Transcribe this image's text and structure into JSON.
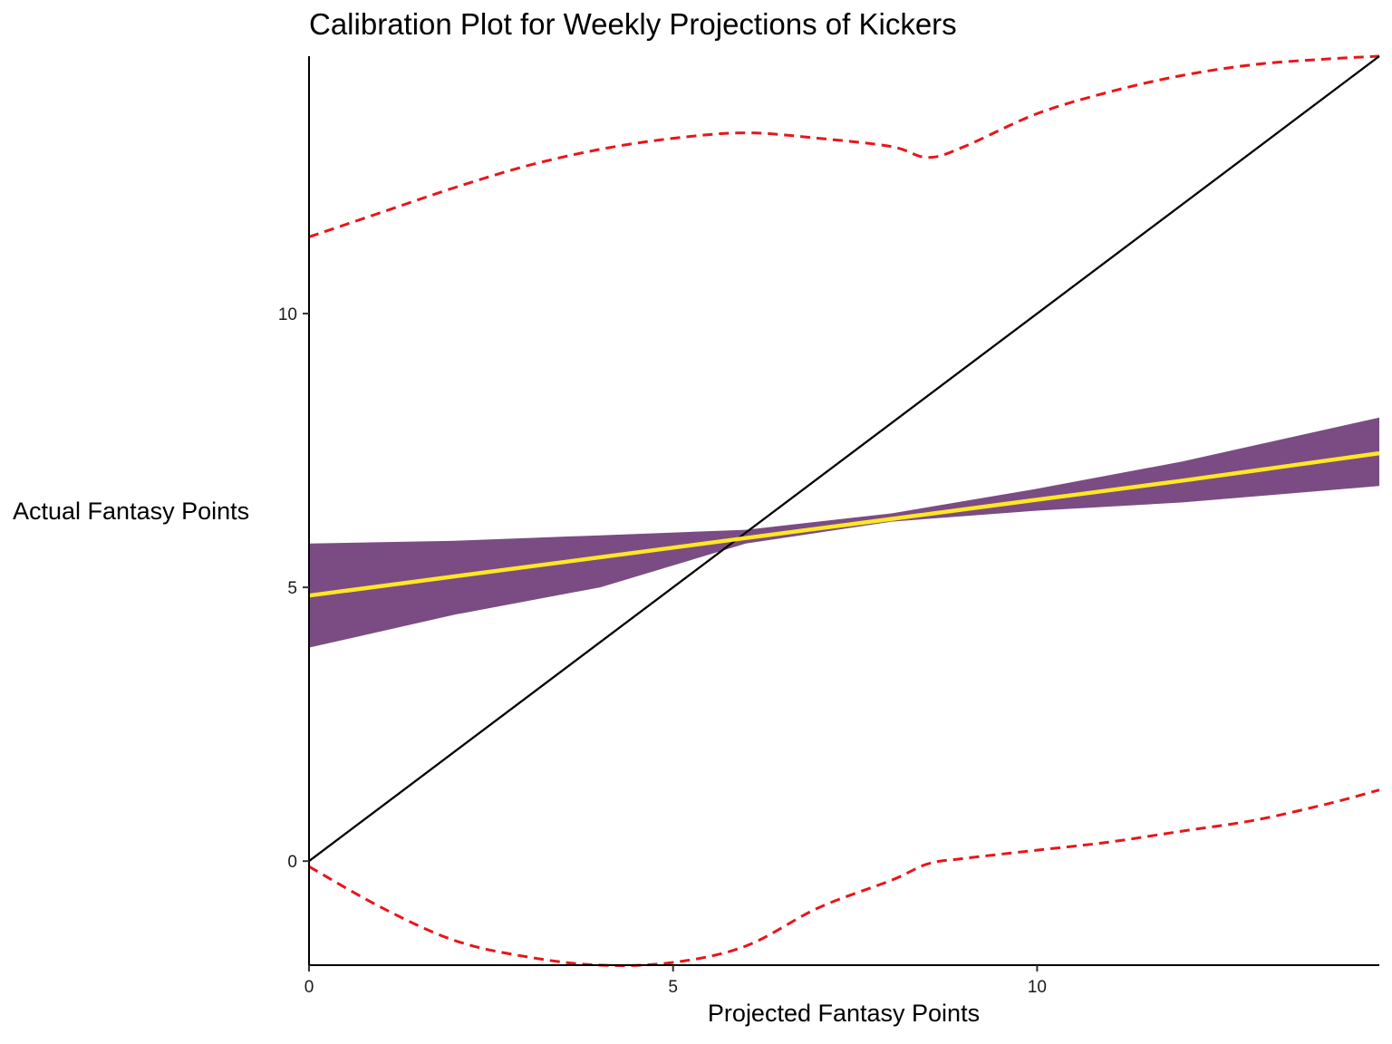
{
  "chart_data": {
    "type": "line",
    "title": "Calibration Plot for Weekly Projections of Kickers",
    "xlabel": "Projected Fantasy Points",
    "ylabel": "Actual Fantasy Points",
    "xlim": [
      0,
      14.7
    ],
    "ylim": [
      -1.9,
      14.7
    ],
    "x_ticks": [
      0,
      5,
      10
    ],
    "y_ticks": [
      0,
      5,
      10
    ],
    "grid": false,
    "legend": "none",
    "reference_line": {
      "x": [
        0,
        14.7
      ],
      "y": [
        0,
        14.7
      ],
      "color": "#000000"
    },
    "fit": {
      "x": [
        0,
        2,
        4,
        6,
        8,
        10,
        12,
        14.7
      ],
      "y": [
        4.85,
        5.2,
        5.55,
        5.9,
        6.25,
        6.6,
        6.95,
        7.45
      ],
      "color": "#FDE725"
    },
    "confidence_band": {
      "x": [
        0,
        2,
        4,
        6,
        8,
        10,
        12,
        14.7
      ],
      "lower": [
        3.9,
        4.5,
        5.0,
        5.8,
        6.2,
        6.4,
        6.55,
        6.85
      ],
      "upper": [
        5.8,
        5.85,
        5.95,
        6.05,
        6.35,
        6.8,
        7.3,
        8.1
      ],
      "color": "#7B4C84"
    },
    "prediction_interval": {
      "x": [
        0,
        1,
        2,
        3,
        4,
        5,
        6,
        7,
        8,
        8.5,
        9,
        10,
        11,
        12,
        13,
        14,
        14.7
      ],
      "upper": [
        11.4,
        11.85,
        12.3,
        12.7,
        13.0,
        13.2,
        13.3,
        13.2,
        13.05,
        12.85,
        13.05,
        13.65,
        14.05,
        14.35,
        14.55,
        14.65,
        14.7
      ],
      "lower": [
        -0.1,
        -0.85,
        -1.45,
        -1.75,
        -1.9,
        -1.85,
        -1.55,
        -0.85,
        -0.35,
        -0.05,
        0.05,
        0.2,
        0.35,
        0.55,
        0.75,
        1.05,
        1.3
      ],
      "color": "#E8151B",
      "style": "dashed"
    }
  }
}
